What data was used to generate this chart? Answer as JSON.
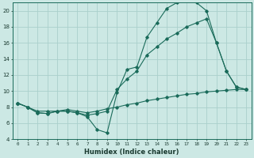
{
  "xlabel": "Humidex (Indice chaleur)",
  "background_color": "#cce8e4",
  "grid_color": "#aad0cc",
  "line_color": "#1a6b5a",
  "xlim": [
    -0.5,
    23.5
  ],
  "ylim": [
    4,
    21
  ],
  "yticks": [
    4,
    6,
    8,
    10,
    12,
    14,
    16,
    18,
    20
  ],
  "xticks": [
    0,
    1,
    2,
    3,
    4,
    5,
    6,
    7,
    8,
    9,
    10,
    11,
    12,
    13,
    14,
    15,
    16,
    17,
    18,
    19,
    20,
    21,
    22,
    23
  ],
  "series1_x": [
    0,
    1,
    2,
    3,
    4,
    5,
    6,
    7,
    8,
    9,
    10,
    11,
    12,
    13,
    14,
    15,
    16,
    17,
    18,
    19,
    20,
    21,
    22,
    23
  ],
  "series1_y": [
    8.5,
    8.0,
    7.3,
    7.2,
    7.5,
    7.5,
    7.3,
    6.8,
    5.2,
    4.8,
    9.8,
    12.7,
    13.0,
    16.7,
    18.5,
    20.3,
    21.0,
    21.2,
    21.0,
    20.0,
    16.0,
    12.5,
    10.5,
    10.2
  ],
  "series2_x": [
    0,
    1,
    2,
    3,
    4,
    5,
    6,
    7,
    8,
    9,
    10,
    11,
    12,
    13,
    14,
    15,
    16,
    17,
    18,
    19,
    20,
    21,
    22,
    23
  ],
  "series2_y": [
    8.5,
    8.0,
    7.3,
    7.2,
    7.5,
    7.5,
    7.3,
    7.0,
    7.2,
    7.5,
    10.2,
    11.5,
    12.5,
    14.5,
    15.5,
    16.5,
    17.2,
    18.0,
    18.5,
    19.0,
    16.0,
    12.5,
    10.5,
    10.2
  ],
  "series3_x": [
    0,
    1,
    2,
    3,
    4,
    5,
    6,
    7,
    8,
    9,
    10,
    11,
    12,
    13,
    14,
    15,
    16,
    17,
    18,
    19,
    20,
    21,
    22,
    23
  ],
  "series3_y": [
    8.5,
    8.0,
    7.5,
    7.5,
    7.5,
    7.7,
    7.5,
    7.3,
    7.5,
    7.8,
    8.0,
    8.3,
    8.5,
    8.8,
    9.0,
    9.2,
    9.4,
    9.6,
    9.7,
    9.9,
    10.0,
    10.1,
    10.2,
    10.2
  ]
}
